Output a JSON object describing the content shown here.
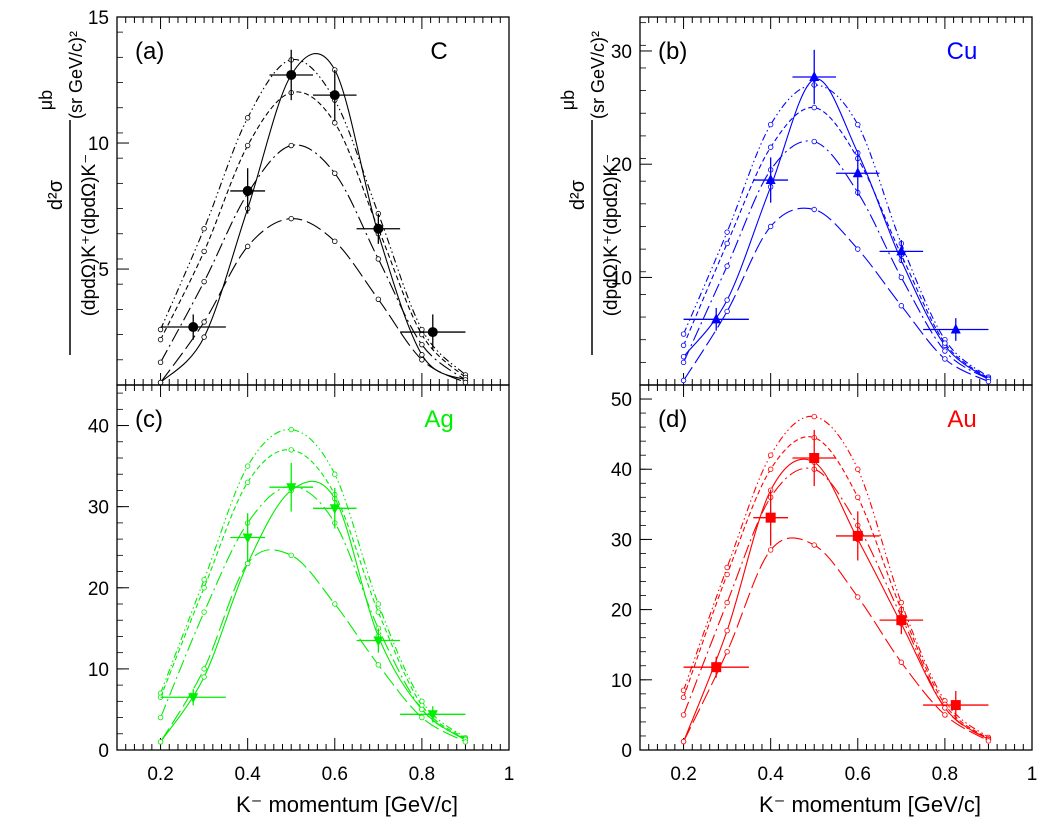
{
  "x_axis_label": "K⁻ momentum [GeV/c]",
  "y_axis_label": {
    "numerator": "d²σ",
    "denominator": "(dpdΩ)K⁺(dpdΩ)K⁻",
    "unit_numerator": "μb",
    "unit_denominator": "(sr GeV/c)²"
  },
  "chart_data": [
    {
      "type": "line",
      "panel": "(a)",
      "target": "C",
      "color": "#000000",
      "marker": "circle",
      "x_ticks": [
        "0.2",
        "0.4",
        "0.6",
        "0.8",
        "1"
      ],
      "xlim": [
        0.1,
        1.0
      ],
      "ylim": [
        0.4,
        15.0
      ],
      "y_ticks": [
        "5",
        "10",
        "15"
      ],
      "y_tick_values": [
        5,
        10,
        15
      ],
      "data_points": [
        {
          "x": 0.275,
          "y": 2.7,
          "xerr": 0.075,
          "yerr": 0.5
        },
        {
          "x": 0.4,
          "y": 8.1,
          "xerr": 0.04,
          "yerr": 0.9
        },
        {
          "x": 0.5,
          "y": 12.7,
          "xerr": 0.05,
          "yerr": 1.0
        },
        {
          "x": 0.6,
          "y": 11.9,
          "xerr": 0.05,
          "yerr": 1.0
        },
        {
          "x": 0.7,
          "y": 6.6,
          "xerr": 0.05,
          "yerr": 0.6
        },
        {
          "x": 0.825,
          "y": 2.5,
          "xerr": 0.075,
          "yerr": 0.7
        }
      ],
      "model_x": [
        0.2,
        0.3,
        0.4,
        0.5,
        0.6,
        0.7,
        0.8,
        0.9
      ],
      "models": [
        {
          "style": "solid",
          "values": [
            0.5,
            2.3,
            7.4,
            12.7,
            12.9,
            6.4,
            1.6,
            0.6
          ]
        },
        {
          "style": "dash-dot-dot",
          "values": [
            2.6,
            6.6,
            11.0,
            13.3,
            11.7,
            7.2,
            2.6,
            0.8
          ]
        },
        {
          "style": "dashed",
          "values": [
            2.2,
            5.7,
            9.9,
            12.0,
            10.8,
            6.6,
            2.4,
            0.7
          ]
        },
        {
          "style": "long-dash-dot",
          "values": [
            1.3,
            4.5,
            8.0,
            9.9,
            8.8,
            5.4,
            2.0,
            0.6
          ]
        },
        {
          "style": "long-dash",
          "values": [
            0.5,
            2.9,
            5.9,
            7.0,
            6.1,
            3.8,
            1.4,
            0.5
          ]
        }
      ]
    },
    {
      "type": "line",
      "panel": "(b)",
      "target": "Cu",
      "color": "#0000ff",
      "marker": "triangle-up",
      "x_ticks": [
        "0.2",
        "0.4",
        "0.6",
        "0.8",
        "1"
      ],
      "xlim": [
        0.1,
        1.0
      ],
      "ylim": [
        0.5,
        33.0
      ],
      "y_ticks": [
        "10",
        "20",
        "30"
      ],
      "y_tick_values": [
        10,
        20,
        30
      ],
      "data_points": [
        {
          "x": 0.275,
          "y": 6.3,
          "xerr": 0.075,
          "yerr": 1.0
        },
        {
          "x": 0.4,
          "y": 18.6,
          "xerr": 0.04,
          "yerr": 2.0
        },
        {
          "x": 0.5,
          "y": 27.7,
          "xerr": 0.05,
          "yerr": 2.4
        },
        {
          "x": 0.6,
          "y": 19.2,
          "xerr": 0.05,
          "yerr": 2.0
        },
        {
          "x": 0.7,
          "y": 12.3,
          "xerr": 0.05,
          "yerr": 1.0
        },
        {
          "x": 0.825,
          "y": 5.4,
          "xerr": 0.075,
          "yerr": 1.0
        }
      ],
      "model_x": [
        0.2,
        0.3,
        0.4,
        0.5,
        0.6,
        0.7,
        0.8,
        0.9
      ],
      "models": [
        {
          "style": "solid",
          "values": [
            3.0,
            8.0,
            18.0,
            27.5,
            21.0,
            11.5,
            4.0,
            1.0
          ]
        },
        {
          "style": "dash-dot-dot",
          "values": [
            5.0,
            14.0,
            23.5,
            27.0,
            23.5,
            13.0,
            4.5,
            1.2
          ]
        },
        {
          "style": "dashed",
          "values": [
            4.0,
            13.0,
            21.5,
            25.0,
            20.5,
            12.0,
            4.2,
            1.1
          ]
        },
        {
          "style": "long-dash-dot",
          "values": [
            2.5,
            11.0,
            19.5,
            22.0,
            17.5,
            10.0,
            3.5,
            1.0
          ]
        },
        {
          "style": "long-dash",
          "values": [
            0.9,
            7.0,
            14.5,
            16.0,
            12.5,
            7.5,
            2.8,
            0.8
          ]
        }
      ]
    },
    {
      "type": "line",
      "panel": "(c)",
      "target": "Ag",
      "color": "#00ee00",
      "marker": "triangle-down",
      "x_ticks": [
        "0.2",
        "0.4",
        "0.6",
        "0.8",
        "1"
      ],
      "xlim": [
        0.1,
        1.0
      ],
      "ylim": [
        0,
        45
      ],
      "y_ticks": [
        "0",
        "10",
        "20",
        "30",
        "40"
      ],
      "y_tick_values": [
        0,
        10,
        20,
        30,
        40
      ],
      "data_points": [
        {
          "x": 0.275,
          "y": 6.5,
          "xerr": 0.075,
          "yerr": 1.0
        },
        {
          "x": 0.4,
          "y": 26.2,
          "xerr": 0.04,
          "yerr": 3.0
        },
        {
          "x": 0.5,
          "y": 32.4,
          "xerr": 0.05,
          "yerr": 3.0
        },
        {
          "x": 0.6,
          "y": 29.8,
          "xerr": 0.05,
          "yerr": 2.5
        },
        {
          "x": 0.7,
          "y": 13.5,
          "xerr": 0.05,
          "yerr": 1.5
        },
        {
          "x": 0.825,
          "y": 4.4,
          "xerr": 0.075,
          "yerr": 1.0
        }
      ],
      "model_x": [
        0.2,
        0.3,
        0.4,
        0.5,
        0.6,
        0.7,
        0.8,
        0.9
      ],
      "models": [
        {
          "style": "solid",
          "values": [
            1.0,
            9.0,
            23.0,
            32.0,
            31.0,
            14.0,
            5.0,
            1.2
          ]
        },
        {
          "style": "dash-dot-dot",
          "values": [
            7.0,
            21.0,
            35.0,
            39.5,
            34.0,
            18.0,
            6.0,
            1.5
          ]
        },
        {
          "style": "dashed",
          "values": [
            6.5,
            20.0,
            33.0,
            37.0,
            31.5,
            17.0,
            5.5,
            1.4
          ]
        },
        {
          "style": "long-dash-dot",
          "values": [
            4.0,
            17.0,
            28.0,
            32.5,
            28.0,
            15.0,
            5.0,
            1.3
          ]
        },
        {
          "style": "long-dash",
          "values": [
            1.0,
            10.0,
            23.0,
            24.0,
            18.0,
            10.5,
            4.0,
            1.0
          ]
        }
      ]
    },
    {
      "type": "line",
      "panel": "(d)",
      "target": "Au",
      "color": "#ff0000",
      "marker": "square",
      "x_ticks": [
        "0.2",
        "0.4",
        "0.6",
        "0.8",
        "1"
      ],
      "xlim": [
        0.1,
        1.0
      ],
      "ylim": [
        0,
        52
      ],
      "y_ticks": [
        "0",
        "10",
        "20",
        "30",
        "40",
        "50"
      ],
      "y_tick_values": [
        0,
        10,
        20,
        30,
        40,
        50
      ],
      "data_points": [
        {
          "x": 0.275,
          "y": 11.8,
          "xerr": 0.075,
          "yerr": 1.5
        },
        {
          "x": 0.4,
          "y": 33.1,
          "xerr": 0.04,
          "yerr": 4.0
        },
        {
          "x": 0.5,
          "y": 41.6,
          "xerr": 0.05,
          "yerr": 4.0
        },
        {
          "x": 0.6,
          "y": 30.5,
          "xerr": 0.05,
          "yerr": 3.5
        },
        {
          "x": 0.7,
          "y": 18.5,
          "xerr": 0.05,
          "yerr": 2.0
        },
        {
          "x": 0.825,
          "y": 6.4,
          "xerr": 0.075,
          "yerr": 2.0
        }
      ],
      "model_x": [
        0.2,
        0.3,
        0.4,
        0.5,
        0.6,
        0.7,
        0.8,
        0.9
      ],
      "models": [
        {
          "style": "solid",
          "values": [
            1.2,
            17.0,
            37.0,
            41.0,
            30.0,
            18.0,
            6.0,
            1.5
          ]
        },
        {
          "style": "dash-dot-dot",
          "values": [
            8.5,
            26.0,
            42.0,
            47.5,
            40.0,
            21.0,
            7.0,
            1.8
          ]
        },
        {
          "style": "dashed",
          "values": [
            7.5,
            25.0,
            40.0,
            44.5,
            36.0,
            20.0,
            6.5,
            1.6
          ]
        },
        {
          "style": "long-dash-dot",
          "values": [
            5.0,
            21.0,
            36.0,
            40.0,
            32.0,
            19.0,
            6.0,
            1.5
          ]
        },
        {
          "style": "long-dash",
          "values": [
            1.2,
            14.0,
            28.5,
            29.2,
            21.8,
            12.5,
            5.0,
            1.3
          ]
        }
      ]
    }
  ]
}
